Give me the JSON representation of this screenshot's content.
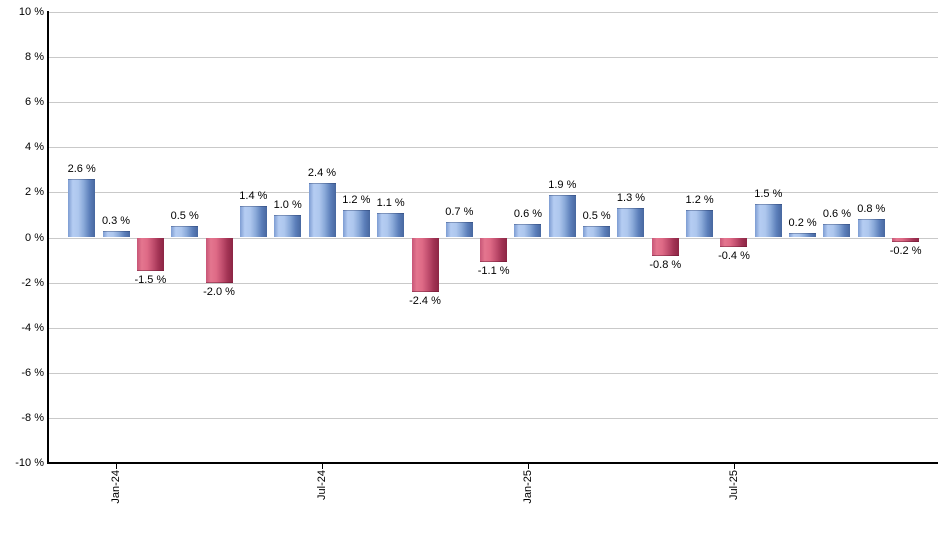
{
  "chart_data": {
    "type": "bar",
    "title": "",
    "xlabel": "",
    "ylabel": "",
    "ylim": [
      -10,
      10
    ],
    "grid": true,
    "values": [
      2.6,
      0.3,
      -1.5,
      0.5,
      -2.0,
      1.4,
      1.0,
      2.4,
      1.2,
      1.1,
      -2.4,
      0.7,
      -1.1,
      0.6,
      1.9,
      0.5,
      1.3,
      -0.8,
      1.2,
      -0.4,
      1.5,
      0.2,
      0.6,
      0.8,
      -0.2
    ],
    "value_labels": [
      "2.6 %",
      "0.3 %",
      "-1.5 %",
      "0.5 %",
      "-2.0 %",
      "1.4 %",
      "1.0 %",
      "2.4 %",
      "1.2 %",
      "1.1 %",
      "-2.4 %",
      "0.7 %",
      "-1.1 %",
      "0.6 %",
      "1.9 %",
      "0.5 %",
      "1.3 %",
      "-0.8 %",
      "1.2 %",
      "-0.4 %",
      "1.5 %",
      "0.2 %",
      "0.6 %",
      "0.8 %",
      "-0.2 %"
    ],
    "xticks": [
      {
        "bar_index": 1,
        "label": "Jan-24"
      },
      {
        "bar_index": 7,
        "label": "Jul-24"
      },
      {
        "bar_index": 13,
        "label": "Jan-25"
      },
      {
        "bar_index": 19,
        "label": "Jul-25"
      }
    ],
    "yticks": [
      {
        "value": 10,
        "label": "10 %"
      },
      {
        "value": 8,
        "label": "8 %"
      },
      {
        "value": 6,
        "label": "6 %"
      },
      {
        "value": 4,
        "label": "4 %"
      },
      {
        "value": 2,
        "label": "2 %"
      },
      {
        "value": 0,
        "label": "0 %"
      },
      {
        "value": -2,
        "label": "-2 %"
      },
      {
        "value": -4,
        "label": "-4 %"
      },
      {
        "value": -6,
        "label": "-6 %"
      },
      {
        "value": -8,
        "label": "-8 %"
      },
      {
        "value": -10,
        "label": "-10 %"
      }
    ],
    "legend": null,
    "colors": {
      "positive_light": "#b5cdf2",
      "positive_dark": "#47679f",
      "negative_light": "#e4768f",
      "negative_dark": "#8c2544",
      "gridline": "#c9c9c9",
      "axis": "#000000",
      "text": "#000000",
      "background": "#ffffff"
    }
  }
}
